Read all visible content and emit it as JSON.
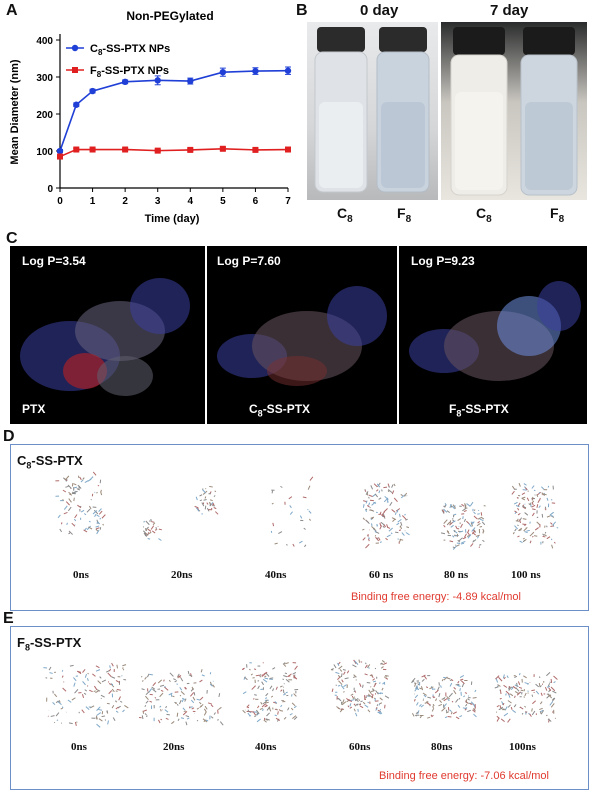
{
  "panels": {
    "a": {
      "letter": "A"
    },
    "b": {
      "letter": "B",
      "day0": "0 day",
      "day7": "7 day",
      "vials": [
        {
          "base": "C",
          "sub": "8"
        },
        {
          "base": "F",
          "sub": "8"
        },
        {
          "base": "C",
          "sub": "8"
        },
        {
          "base": "F",
          "sub": "8"
        }
      ]
    },
    "c": {
      "letter": "C",
      "molecules": [
        {
          "logp": "Log P=3.54",
          "name": "PTX",
          "name_sub": "",
          "name_rest": ""
        },
        {
          "logp": "Log P=7.60",
          "name": "C",
          "name_sub": "8",
          "name_rest": "-SS-PTX"
        },
        {
          "logp": "Log P=9.23",
          "name": "F",
          "name_sub": "8",
          "name_rest": "-SS-PTX"
        }
      ]
    },
    "d": {
      "letter": "D",
      "title": "C",
      "title_sub": "8",
      "title_rest": "-SS-PTX",
      "times": [
        "0ns",
        "20ns",
        "40ns",
        "60 ns",
        "80 ns",
        "100 ns"
      ],
      "binding": "Binding free energy: -4.89 kcal/mol"
    },
    "e": {
      "letter": "E",
      "title": "F",
      "title_sub": "8",
      "title_rest": "-SS-PTX",
      "times": [
        "0ns",
        "20ns",
        "40ns",
        "60ns",
        "80ns",
        "100ns"
      ],
      "binding": "Binding free energy: -7.06 kcal/mol"
    }
  },
  "chart_data": {
    "type": "line",
    "title": "Non-PEGylated",
    "xlabel": "Time  (day)",
    "ylabel": "Mean Diameter (nm)",
    "xlim": [
      0,
      7
    ],
    "ylim": [
      0,
      400
    ],
    "xticks": [
      "0",
      "1",
      "2",
      "3",
      "4",
      "5",
      "6",
      "7"
    ],
    "yticks": [
      "0",
      "100",
      "200",
      "300",
      "400"
    ],
    "legend_position": "top-left",
    "series": [
      {
        "name": "C8-SS-PTX NPs",
        "legend_base": "C",
        "legend_sub": "8",
        "legend_rest": "-SS-PTX NPs",
        "color": "#1f3fd6",
        "marker": "circle",
        "x": [
          0,
          0.5,
          1,
          2,
          3,
          4,
          5,
          6,
          7
        ],
        "y": [
          100,
          225,
          262,
          287,
          291,
          289,
          313,
          316,
          317
        ],
        "err": [
          4,
          5,
          5,
          5,
          12,
          8,
          11,
          9,
          10
        ]
      },
      {
        "name": "F8-SS-PTX NPs",
        "legend_base": "F",
        "legend_sub": "8",
        "legend_rest": "-SS-PTX NPs",
        "color": "#e02020",
        "marker": "square",
        "x": [
          0,
          0.5,
          1,
          2,
          3,
          4,
          5,
          6,
          7
        ],
        "y": [
          85,
          104,
          104,
          104,
          101,
          103,
          106,
          103,
          104
        ],
        "err": [
          3,
          3,
          2,
          3,
          3,
          3,
          4,
          3,
          3
        ]
      }
    ]
  },
  "colors": {
    "frame": "#6b8fc6",
    "binding_text": "#e03a2f"
  }
}
